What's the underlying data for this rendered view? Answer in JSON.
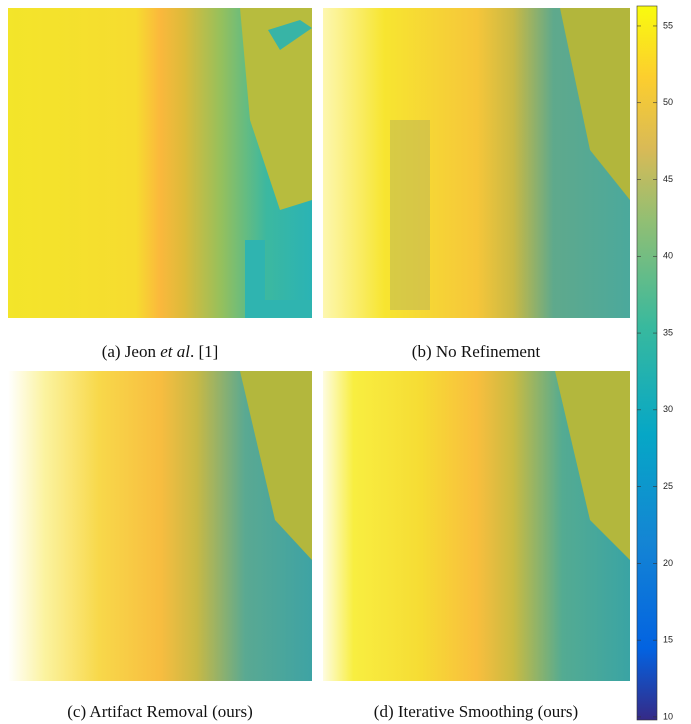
{
  "figure": {
    "panels": [
      {
        "caption": [
          "(a) Jeon ",
          "et al",
          ". [1]"
        ]
      },
      {
        "caption": [
          "(b) No Refinement"
        ]
      },
      {
        "caption": [
          "(c) Artifact Removal (ours)"
        ]
      },
      {
        "caption": [
          "(d) Iterative Smoothing (ours)"
        ]
      }
    ],
    "colorbar": {
      "lim": [
        9.8,
        56.3
      ],
      "ticks": [
        10,
        15,
        20,
        25,
        30,
        35,
        40,
        45,
        50,
        55
      ]
    }
  }
}
